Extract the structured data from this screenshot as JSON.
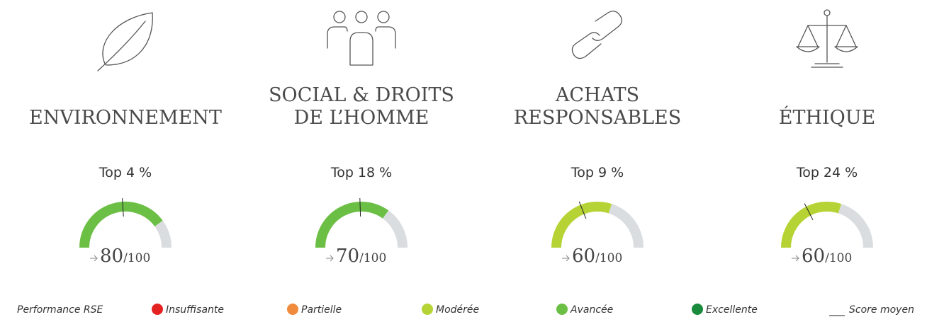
{
  "pillars": [
    {
      "title": [
        "ENVIRONNEMENT"
      ],
      "rank": "Top 4 %",
      "score": 80,
      "score_max_label": "/100",
      "average": 48,
      "color": "#6cbf45"
    },
    {
      "title": [
        "SOCIAL & DROITS",
        "DE L’HOMME"
      ],
      "rank": "Top 18 %",
      "score": 70,
      "score_max_label": "/100",
      "average": 49,
      "color": "#6cbf45"
    },
    {
      "title": [
        "ACHATS",
        "RESPONSABLES"
      ],
      "rank": "Top 9 %",
      "score": 60,
      "score_max_label": "/100",
      "average": 38,
      "color": "#b5d334"
    },
    {
      "title": [
        "ÉTHIQUE"
      ],
      "rank": "Top 24 %",
      "score": 60,
      "score_max_label": "/100",
      "average": 35,
      "color": "#b5d334"
    }
  ],
  "scale": {
    "min": 0,
    "max": 100,
    "track_color": "#d9dde0"
  },
  "legend": {
    "title": "Performance RSE",
    "items": [
      {
        "label": "Insuffisante",
        "color": "#e52222"
      },
      {
        "label": "Partielle",
        "color": "#f08a3c"
      },
      {
        "label": "Modérée",
        "color": "#b5d334"
      },
      {
        "label": "Avancée",
        "color": "#6cbf45"
      },
      {
        "label": "Excellente",
        "color": "#1a8a3c"
      }
    ],
    "average_label": "Score moyen"
  }
}
